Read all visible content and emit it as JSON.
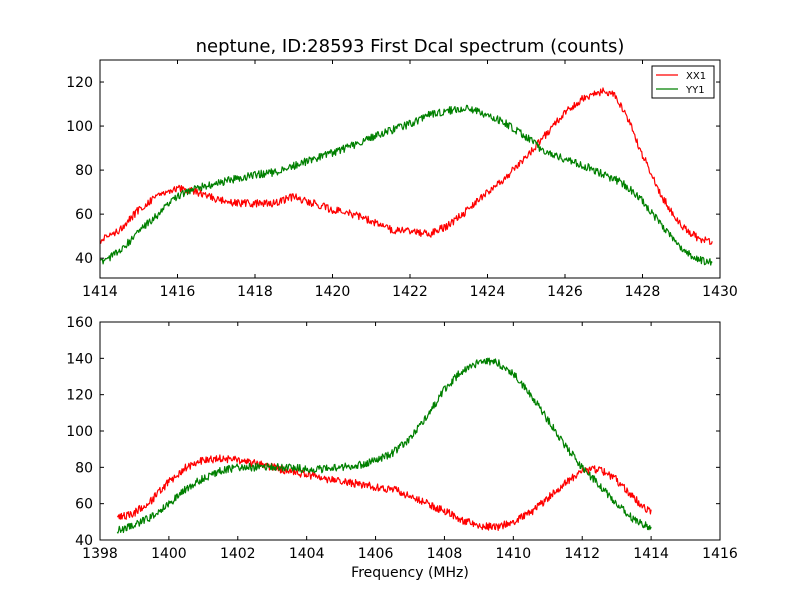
{
  "title": "neptune, ID:28593 First Dcal spectrum (counts)",
  "xlabel": "Frequency (MHz)",
  "colors": {
    "XX1": "#ff0000",
    "YY1": "#008000"
  },
  "chart_data": [
    {
      "type": "line",
      "title": "neptune, ID:28593 First Dcal spectrum (counts)",
      "xlabel": "",
      "ylabel": "",
      "xlim": [
        1414,
        1430
      ],
      "ylim": [
        31,
        130
      ],
      "xticks": [
        "1414",
        "1416",
        "1418",
        "1420",
        "1422",
        "1424",
        "1426",
        "1428",
        "1430"
      ],
      "yticks": [
        "40",
        "60",
        "80",
        "100",
        "120"
      ],
      "legend": {
        "placement": "top-right",
        "entries": [
          "XX1",
          "YY1"
        ]
      },
      "grid": false,
      "series": [
        {
          "name": "XX1",
          "color": "#ff0000",
          "x": [
            1414.0,
            1414.5,
            1415.0,
            1415.5,
            1416.0,
            1416.5,
            1417.0,
            1417.5,
            1418.0,
            1418.5,
            1419.0,
            1419.5,
            1420.0,
            1420.5,
            1421.0,
            1421.5,
            1422.0,
            1422.5,
            1423.0,
            1423.5,
            1424.0,
            1424.5,
            1425.0,
            1425.5,
            1426.0,
            1426.5,
            1427.0,
            1427.3,
            1427.6,
            1428.0,
            1428.5,
            1429.0,
            1429.5,
            1429.8
          ],
          "y": [
            48,
            53,
            62,
            69,
            72,
            70,
            67,
            65,
            65,
            65,
            68,
            65,
            62,
            60,
            57,
            53,
            52,
            51,
            55,
            62,
            70,
            77,
            86,
            96,
            106,
            113,
            116,
            114,
            104,
            87,
            68,
            55,
            48,
            48
          ]
        },
        {
          "name": "YY1",
          "color": "#008000",
          "x": [
            1414.0,
            1414.5,
            1415.0,
            1415.5,
            1416.0,
            1416.5,
            1417.0,
            1417.5,
            1418.0,
            1418.5,
            1419.0,
            1419.5,
            1420.0,
            1420.5,
            1421.0,
            1421.5,
            1422.0,
            1422.5,
            1423.0,
            1423.5,
            1424.0,
            1424.5,
            1425.0,
            1425.5,
            1426.0,
            1426.5,
            1427.0,
            1427.5,
            1428.0,
            1428.5,
            1429.0,
            1429.5,
            1429.8
          ],
          "y": [
            38,
            43,
            52,
            60,
            68,
            72,
            74,
            76,
            78,
            79,
            82,
            85,
            88,
            91,
            95,
            98,
            101,
            105,
            107,
            108,
            105,
            101,
            95,
            88,
            85,
            82,
            78,
            74,
            66,
            55,
            44,
            39,
            38
          ]
        }
      ]
    },
    {
      "type": "line",
      "title": "",
      "xlabel": "Frequency (MHz)",
      "ylabel": "",
      "xlim": [
        1398,
        1416
      ],
      "ylim": [
        40,
        160
      ],
      "xticks": [
        "1398",
        "1400",
        "1402",
        "1404",
        "1406",
        "1408",
        "1410",
        "1412",
        "1414",
        "1416"
      ],
      "yticks": [
        "40",
        "60",
        "80",
        "100",
        "120",
        "140",
        "160"
      ],
      "grid": false,
      "series": [
        {
          "name": "XX1",
          "color": "#ff0000",
          "x": [
            1398.5,
            1399.0,
            1399.5,
            1400.0,
            1400.5,
            1401.0,
            1401.5,
            1402.0,
            1402.5,
            1403.0,
            1403.5,
            1404.0,
            1404.5,
            1405.0,
            1405.5,
            1406.0,
            1406.5,
            1407.0,
            1407.5,
            1408.0,
            1408.5,
            1409.0,
            1409.5,
            1410.0,
            1410.5,
            1411.0,
            1411.5,
            1412.0,
            1412.5,
            1413.0,
            1413.5,
            1414.0
          ],
          "y": [
            52,
            55,
            62,
            72,
            80,
            84,
            85,
            84,
            82,
            80,
            78,
            76,
            74,
            72,
            71,
            69,
            68,
            64,
            60,
            56,
            51,
            48,
            47,
            50,
            55,
            63,
            71,
            78,
            79,
            73,
            63,
            55
          ]
        },
        {
          "name": "YY1",
          "color": "#008000",
          "x": [
            1398.5,
            1399.0,
            1399.5,
            1400.0,
            1400.5,
            1401.0,
            1401.5,
            1402.0,
            1402.5,
            1403.0,
            1403.5,
            1404.0,
            1404.5,
            1405.0,
            1405.5,
            1406.0,
            1406.5,
            1407.0,
            1407.5,
            1408.0,
            1408.5,
            1409.0,
            1409.5,
            1410.0,
            1410.5,
            1411.0,
            1411.5,
            1412.0,
            1412.5,
            1413.0,
            1413.5,
            1414.0
          ],
          "y": [
            45,
            48,
            53,
            60,
            68,
            74,
            78,
            80,
            80,
            80,
            80,
            79,
            79,
            80,
            81,
            84,
            88,
            96,
            108,
            123,
            133,
            138,
            138,
            132,
            120,
            106,
            92,
            80,
            70,
            60,
            51,
            47
          ]
        }
      ]
    }
  ]
}
